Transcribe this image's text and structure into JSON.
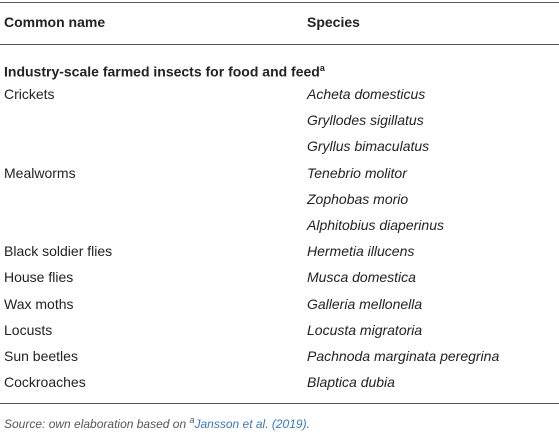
{
  "table": {
    "header": [
      "Common name",
      "Species"
    ],
    "section": {
      "title": "Industry-scale farmed insects for food and feed",
      "note_mark": "a"
    },
    "groups": [
      {
        "name": "Crickets",
        "species": [
          "Acheta domesticus",
          "Gryllodes sigillatus",
          "Gryllus bimaculatus"
        ]
      },
      {
        "name": "Mealworms",
        "species": [
          "Tenebrio molitor",
          "Zophobas morio",
          "Alphitobius diaperinus"
        ]
      },
      {
        "name": "Black soldier flies",
        "species": [
          "Hermetia illucens"
        ]
      },
      {
        "name": "House flies",
        "species": [
          "Musca domestica"
        ]
      },
      {
        "name": "Wax moths",
        "species": [
          "Galleria mellonella"
        ]
      },
      {
        "name": "Locusts",
        "species": [
          "Locusta migratoria"
        ]
      },
      {
        "name": "Sun beetles",
        "species": [
          "Pachnoda marginata peregrina"
        ]
      },
      {
        "name": "Cockroaches",
        "species": [
          "Blaptica dubia"
        ]
      }
    ]
  },
  "footnote": {
    "text": "Source: own elaboration based on",
    "note_mark": "a",
    "reference": "Jansson et al. (2019)",
    "end": "."
  }
}
